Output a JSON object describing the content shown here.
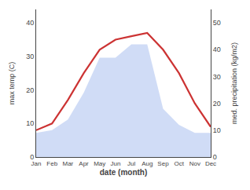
{
  "chart_data": {
    "type": "line",
    "categories": [
      "Jan",
      "Feb",
      "Mar",
      "Apr",
      "May",
      "Jun",
      "Jul",
      "Aug",
      "Sep",
      "Oct",
      "Nov",
      "Dec"
    ],
    "xlabel": "date (month)",
    "ylabel": "max temp (C)",
    "y2label": "med. precipitation (kg/m2)",
    "series": [
      {
        "type": "area",
        "axis": "y2",
        "color": "#b0c4f0",
        "values": [
          9,
          10,
          14,
          24,
          37,
          37,
          42,
          42,
          18,
          12,
          9,
          9
        ]
      },
      {
        "type": "line",
        "color": "#cc3333",
        "values": [
          8,
          10,
          17,
          25,
          32,
          35,
          36,
          37,
          32,
          25,
          16,
          9
        ]
      }
    ],
    "ylim": [
      0,
      44
    ],
    "yticks": [
      0,
      10,
      20,
      30,
      40
    ],
    "y2lim": [
      0,
      55
    ],
    "y2ticks": [
      0,
      10,
      20,
      30,
      40,
      50
    ],
    "grid": false
  }
}
